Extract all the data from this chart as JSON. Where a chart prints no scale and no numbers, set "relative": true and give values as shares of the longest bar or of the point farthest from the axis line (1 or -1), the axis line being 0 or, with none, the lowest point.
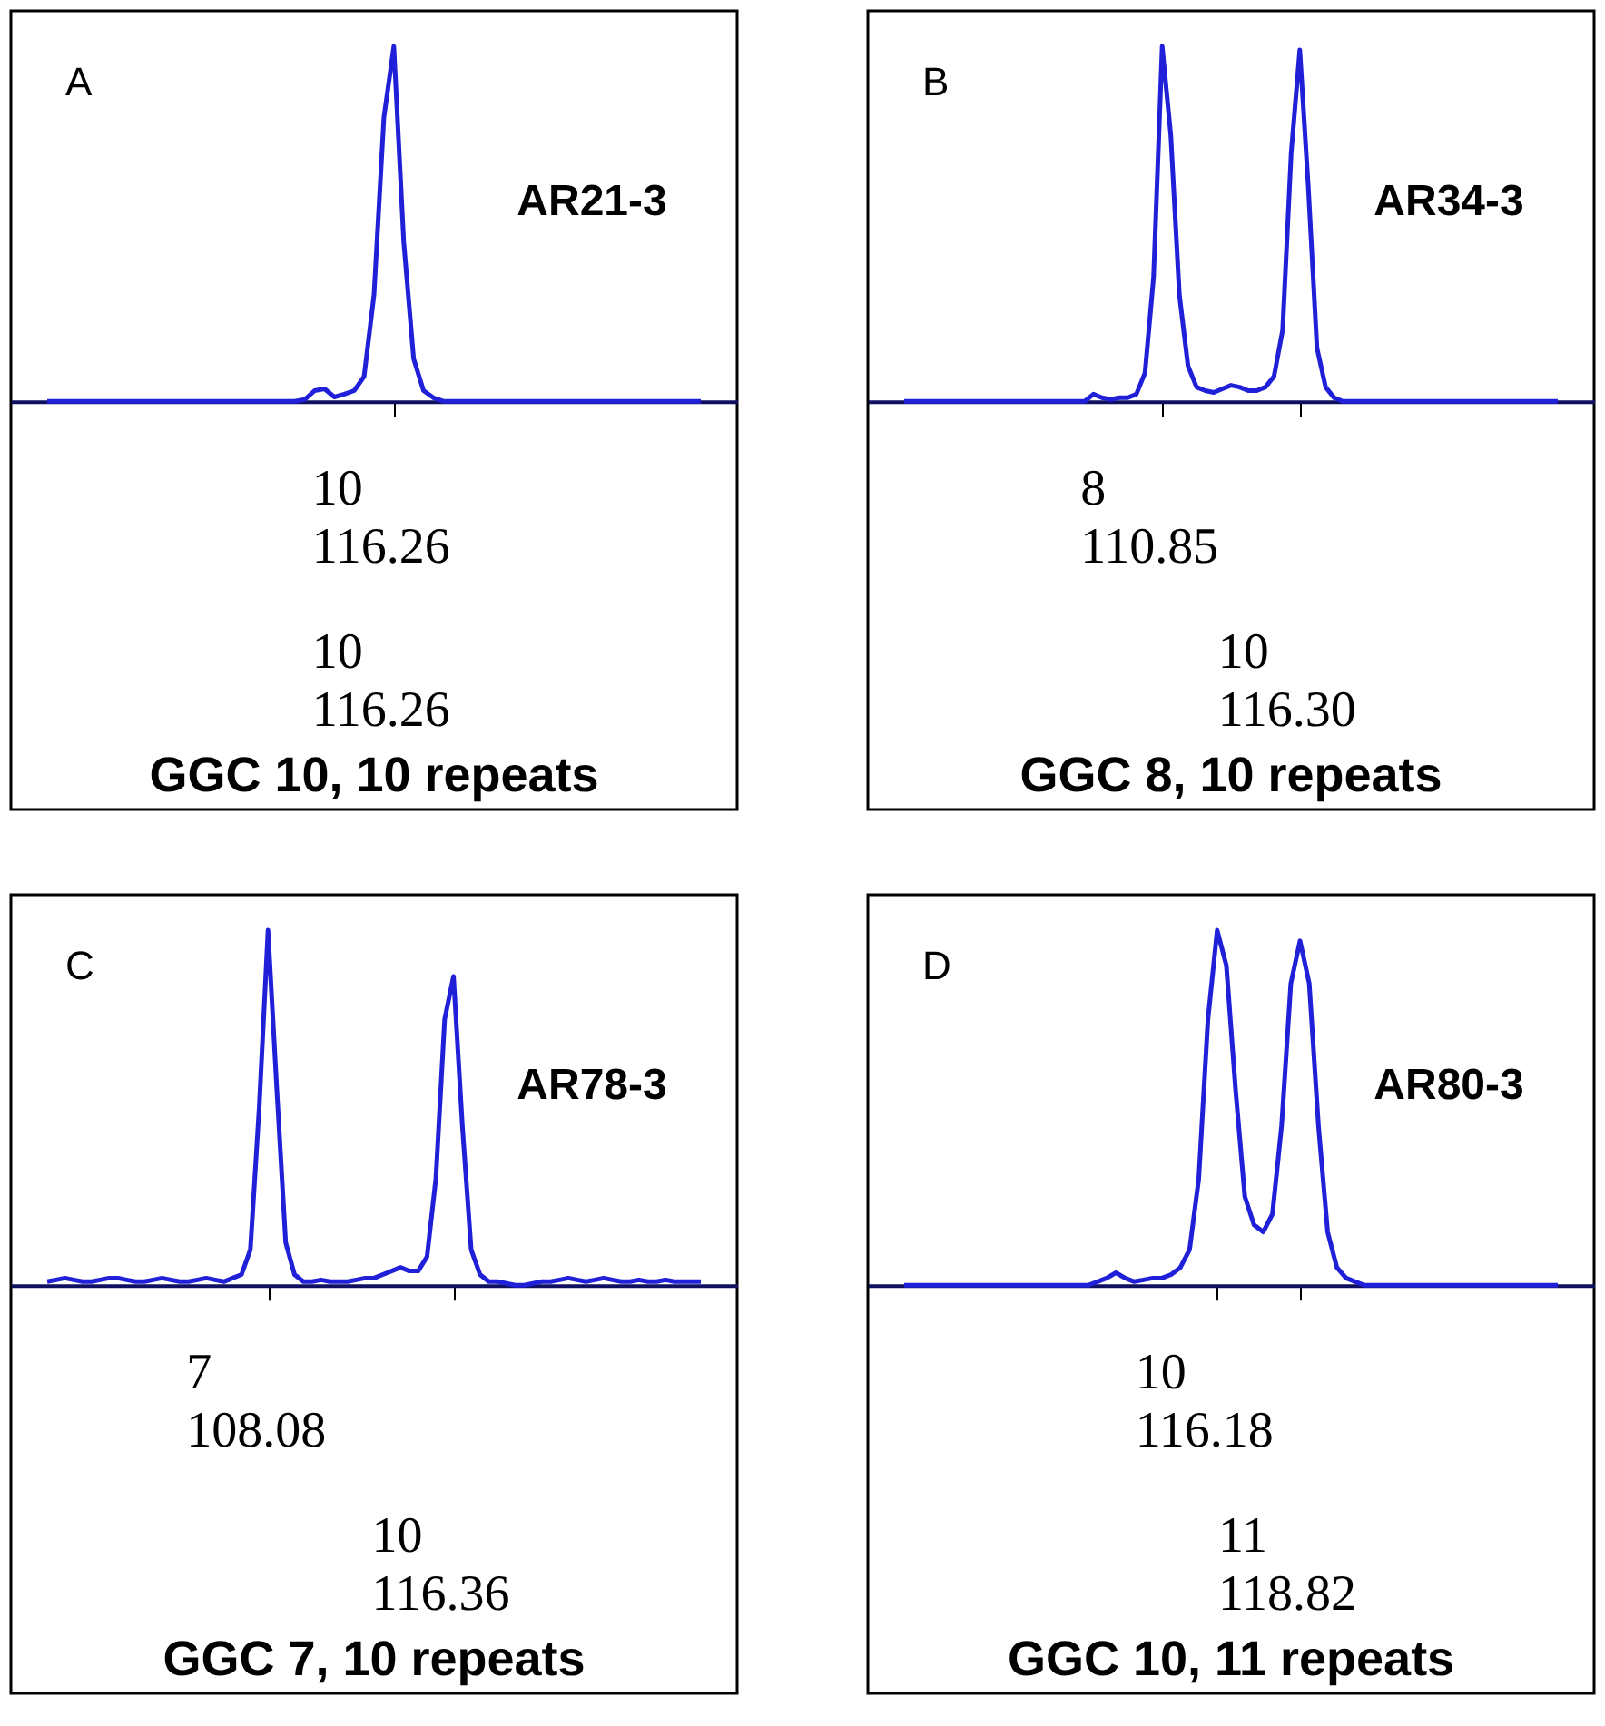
{
  "chart_data": [
    {
      "type": "line",
      "title": "A",
      "subtitle": "AR21-3",
      "xlabel": "GGC 10, 10 repeats",
      "relative": true,
      "tick_labels": false,
      "categories": [
        null,
        null,
        null,
        null,
        null,
        null,
        null,
        null,
        null,
        null,
        null,
        null,
        null,
        null,
        null,
        null,
        null,
        null,
        null,
        null,
        null,
        null,
        null,
        null,
        null,
        null,
        null,
        null,
        null,
        null,
        null,
        null,
        null,
        null,
        null,
        null,
        null,
        null,
        null,
        null,
        null,
        null,
        null,
        null,
        null,
        null,
        null,
        null,
        null,
        null,
        null,
        null,
        null,
        null,
        null,
        null,
        null,
        null,
        null,
        null,
        null,
        null,
        null,
        null,
        null,
        null,
        null
      ],
      "series": [
        {
          "color": "#2020d8",
          "values": [
            0,
            0,
            0,
            0,
            0,
            0,
            0,
            0,
            0,
            0,
            0,
            0,
            0,
            0,
            0,
            0,
            0,
            0,
            0,
            0,
            0,
            0,
            0,
            0,
            0,
            0,
            0.005,
            0.03,
            0.035,
            0.012,
            0.02,
            0.03,
            0.07,
            0.3,
            0.8,
            1,
            0.45,
            0.12,
            0.03,
            0.01,
            0,
            0,
            0,
            0,
            0,
            0,
            0,
            0,
            0,
            0,
            0,
            0,
            0,
            0,
            0,
            0,
            0,
            0,
            0,
            0,
            0,
            0,
            0,
            0,
            0,
            0,
            0
          ]
        }
      ],
      "annotations": [
        "10\n116.26",
        "10\n116.26"
      ]
    },
    {
      "type": "line",
      "title": "B",
      "subtitle": "AR34-3",
      "xlabel": "GGC 8, 10 repeats",
      "relative": true,
      "tick_labels": false,
      "categories": [
        null,
        null,
        null,
        null,
        null,
        null,
        null,
        null,
        null,
        null,
        null,
        null,
        null,
        null,
        null,
        null,
        null,
        null,
        null,
        null,
        null,
        null,
        null,
        null,
        null,
        null,
        null,
        null,
        null,
        null,
        null,
        null,
        null,
        null,
        null,
        null,
        null,
        null,
        null,
        null,
        null,
        null,
        null,
        null,
        null,
        null,
        null,
        null,
        null,
        null,
        null,
        null,
        null,
        null,
        null,
        null,
        null,
        null,
        null,
        null,
        null,
        null,
        null,
        null,
        null,
        null,
        null,
        null,
        null,
        null,
        null,
        null,
        null,
        null,
        null,
        null,
        null
      ],
      "series": [
        {
          "color": "#2020d8",
          "values": [
            0,
            0,
            0,
            0,
            0,
            0,
            0,
            0,
            0,
            0,
            0,
            0,
            0,
            0,
            0,
            0,
            0,
            0,
            0,
            0,
            0,
            0,
            0.02,
            0.01,
            0.005,
            0.01,
            0.01,
            0.02,
            0.08,
            0.35,
            1,
            0.75,
            0.3,
            0.1,
            0.04,
            0.03,
            0.025,
            0.035,
            0.045,
            0.04,
            0.03,
            0.03,
            0.04,
            0.07,
            0.2,
            0.7,
            0.99,
            0.6,
            0.15,
            0.04,
            0.01,
            0,
            0,
            0,
            0,
            0,
            0,
            0,
            0,
            0,
            0,
            0,
            0,
            0,
            0,
            0,
            0,
            0,
            0,
            0,
            0,
            0,
            0,
            0,
            0,
            0,
            0
          ]
        }
      ],
      "annotations": [
        "8\n110.85",
        "10\n116.30"
      ]
    },
    {
      "type": "line",
      "title": "C",
      "subtitle": "AR78-3",
      "xlabel": "GGC 7, 10 repeats",
      "relative": true,
      "tick_labels": false,
      "categories": [
        null,
        null,
        null,
        null,
        null,
        null,
        null,
        null,
        null,
        null,
        null,
        null,
        null,
        null,
        null,
        null,
        null,
        null,
        null,
        null,
        null,
        null,
        null,
        null,
        null,
        null,
        null,
        null,
        null,
        null,
        null,
        null,
        null,
        null,
        null,
        null,
        null,
        null,
        null,
        null,
        null,
        null,
        null,
        null,
        null,
        null,
        null,
        null,
        null,
        null,
        null,
        null,
        null,
        null,
        null,
        null,
        null,
        null,
        null,
        null,
        null,
        null,
        null,
        null,
        null,
        null,
        null,
        null,
        null,
        null,
        null,
        null,
        null,
        null,
        null
      ],
      "series": [
        {
          "color": "#2020d8",
          "values": [
            0.01,
            0.015,
            0.02,
            0.015,
            0.01,
            0.01,
            0.015,
            0.02,
            0.02,
            0.015,
            0.01,
            0.01,
            0.015,
            0.02,
            0.015,
            0.01,
            0.01,
            0.015,
            0.02,
            0.015,
            0.01,
            0.02,
            0.03,
            0.1,
            0.5,
            1,
            0.55,
            0.12,
            0.03,
            0.01,
            0.01,
            0.015,
            0.01,
            0.01,
            0.01,
            0.015,
            0.02,
            0.02,
            0.03,
            0.04,
            0.05,
            0.04,
            0.04,
            0.08,
            0.3,
            0.75,
            0.87,
            0.45,
            0.1,
            0.03,
            0.01,
            0.01,
            0.005,
            0,
            0,
            0.005,
            0.01,
            0.01,
            0.015,
            0.02,
            0.015,
            0.01,
            0.015,
            0.02,
            0.015,
            0.01,
            0.01,
            0.015,
            0.01,
            0.01,
            0.015,
            0.01,
            0.01,
            0.01,
            0.01
          ]
        }
      ],
      "annotations": [
        "7\n108.08",
        "10\n116.36"
      ]
    },
    {
      "type": "line",
      "title": "D",
      "subtitle": "AR80-3",
      "xlabel": "GGC 10, 11 repeats",
      "relative": true,
      "tick_labels": false,
      "categories": [
        null,
        null,
        null,
        null,
        null,
        null,
        null,
        null,
        null,
        null,
        null,
        null,
        null,
        null,
        null,
        null,
        null,
        null,
        null,
        null,
        null,
        null,
        null,
        null,
        null,
        null,
        null,
        null,
        null,
        null,
        null,
        null,
        null,
        null,
        null,
        null,
        null,
        null,
        null,
        null,
        null,
        null,
        null,
        null,
        null,
        null,
        null,
        null,
        null,
        null,
        null,
        null,
        null,
        null,
        null,
        null,
        null,
        null,
        null,
        null,
        null,
        null,
        null,
        null,
        null,
        null,
        null,
        null,
        null,
        null,
        null,
        null
      ],
      "series": [
        {
          "color": "#2020d8",
          "values": [
            0,
            0,
            0,
            0,
            0,
            0,
            0,
            0,
            0,
            0,
            0,
            0,
            0,
            0,
            0,
            0,
            0,
            0,
            0,
            0,
            0,
            0.01,
            0.02,
            0.035,
            0.02,
            0.01,
            0.015,
            0.02,
            0.02,
            0.03,
            0.05,
            0.1,
            0.3,
            0.75,
            1,
            0.9,
            0.55,
            0.25,
            0.17,
            0.15,
            0.2,
            0.45,
            0.85,
            0.97,
            0.85,
            0.45,
            0.15,
            0.05,
            0.02,
            0.01,
            0,
            0,
            0,
            0,
            0,
            0,
            0,
            0,
            0,
            0,
            0,
            0,
            0,
            0,
            0,
            0,
            0,
            0,
            0,
            0,
            0,
            0
          ]
        }
      ],
      "annotations": [
        "10\n116.18",
        "11\n118.82"
      ]
    }
  ]
}
